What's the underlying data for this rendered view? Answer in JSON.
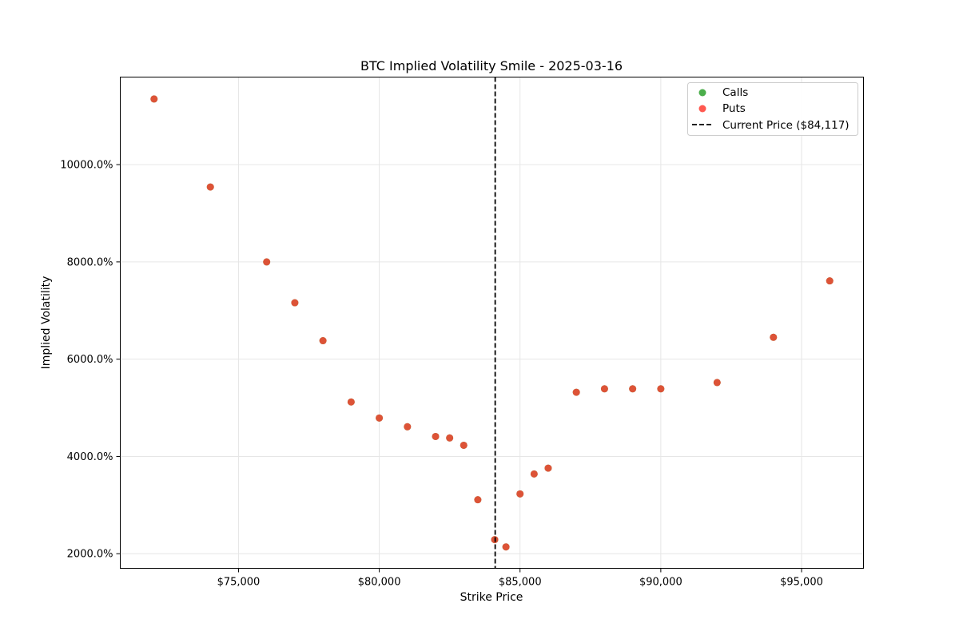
{
  "chart_data": {
    "type": "scatter",
    "title": "BTC Implied Volatility Smile - 2025-03-16",
    "xlabel": "Strike Price",
    "ylabel": "Implied Volatility",
    "xlim": [
      70800,
      97200
    ],
    "ylim": [
      1700,
      11800
    ],
    "x_ticks": [
      75000,
      80000,
      85000,
      90000,
      95000
    ],
    "x_tick_labels": [
      "$75,000",
      "$80,000",
      "$85,000",
      "$90,000",
      "$95,000"
    ],
    "y_ticks": [
      2000,
      4000,
      6000,
      8000,
      10000
    ],
    "y_tick_labels": [
      "2000.0%",
      "4000.0%",
      "6000.0%",
      "8000.0%",
      "10000.0%"
    ],
    "grid": true,
    "legend_position": "top-right",
    "legend": [
      {
        "label": "Calls",
        "kind": "marker",
        "color": "#2ca02c"
      },
      {
        "label": "Puts",
        "kind": "marker",
        "color": "#ff3b30"
      },
      {
        "label": "Current Price ($84,117)",
        "kind": "dashed-line",
        "color": "#000000"
      }
    ],
    "current_price": 84117,
    "series": [
      {
        "name": "Calls",
        "color": "#2ca02c",
        "points": [
          [
            72000,
            11350
          ],
          [
            74000,
            9540
          ],
          [
            76000,
            8000
          ],
          [
            77000,
            7160
          ],
          [
            78000,
            6380
          ],
          [
            79000,
            5120
          ],
          [
            80000,
            4790
          ],
          [
            81000,
            4610
          ],
          [
            82000,
            4410
          ],
          [
            82500,
            4380
          ],
          [
            83000,
            4230
          ],
          [
            83500,
            3110
          ],
          [
            84100,
            2290
          ],
          [
            84500,
            2140
          ],
          [
            85000,
            3230
          ],
          [
            85500,
            3640
          ],
          [
            86000,
            3760
          ],
          [
            87000,
            5320
          ],
          [
            88000,
            5390
          ],
          [
            89000,
            5390
          ],
          [
            90000,
            5390
          ],
          [
            92000,
            5520
          ],
          [
            94000,
            6450
          ],
          [
            96000,
            7610
          ]
        ]
      },
      {
        "name": "Puts",
        "color": "#ff3b30",
        "points": [
          [
            72000,
            11350
          ],
          [
            74000,
            9540
          ],
          [
            76000,
            8000
          ],
          [
            77000,
            7160
          ],
          [
            78000,
            6380
          ],
          [
            79000,
            5120
          ],
          [
            80000,
            4790
          ],
          [
            81000,
            4610
          ],
          [
            82000,
            4410
          ],
          [
            82500,
            4380
          ],
          [
            83000,
            4230
          ],
          [
            83500,
            3110
          ],
          [
            84100,
            2290
          ],
          [
            84500,
            2140
          ],
          [
            85000,
            3230
          ],
          [
            85500,
            3640
          ],
          [
            86000,
            3760
          ],
          [
            87000,
            5320
          ],
          [
            88000,
            5390
          ],
          [
            89000,
            5390
          ],
          [
            90000,
            5390
          ],
          [
            92000,
            5520
          ],
          [
            94000,
            6450
          ],
          [
            96000,
            7610
          ]
        ]
      }
    ]
  }
}
